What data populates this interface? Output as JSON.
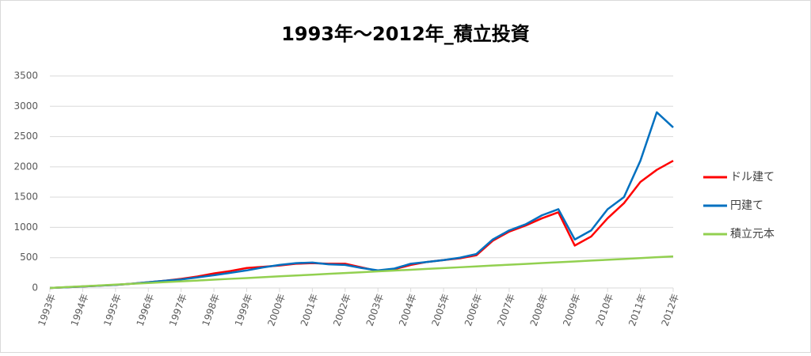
{
  "chart_data": {
    "type": "line",
    "title": "1993年～2012年_積立投資",
    "x": [
      1993,
      1993.5,
      1994,
      1994.5,
      1995,
      1995.5,
      1996,
      1996.5,
      1997,
      1997.5,
      1998,
      1998.5,
      1999,
      1999.5,
      2000,
      2000.5,
      2001,
      2001.5,
      2002,
      2002.5,
      2003,
      2003.5,
      2004,
      2004.5,
      2005,
      2005.5,
      2006,
      2006.5,
      2007,
      2007.5,
      2008,
      2008.5,
      2009,
      2009.5,
      2010,
      2010.5,
      2011,
      2011.5,
      2012
    ],
    "series": [
      {
        "name": "ドル建て",
        "color": "#ff0000",
        "values": [
          0,
          12,
          25,
          38,
          50,
          70,
          95,
          120,
          150,
          190,
          240,
          280,
          330,
          350,
          370,
          400,
          410,
          400,
          400,
          340,
          280,
          310,
          380,
          430,
          460,
          490,
          540,
          780,
          930,
          1030,
          1150,
          1250,
          700,
          850,
          1150,
          1400,
          1750,
          1950,
          2100
        ]
      },
      {
        "name": "円建て",
        "color": "#0070c0",
        "values": [
          0,
          12,
          25,
          38,
          50,
          70,
          95,
          120,
          140,
          175,
          210,
          250,
          290,
          340,
          380,
          410,
          420,
          390,
          380,
          330,
          290,
          320,
          400,
          430,
          460,
          500,
          560,
          800,
          950,
          1050,
          1200,
          1300,
          800,
          950,
          1300,
          1500,
          2100,
          2900,
          2650
        ]
      },
      {
        "name": "積立元本",
        "color": "#92d050",
        "values": [
          0,
          14,
          27,
          41,
          55,
          68,
          82,
          96,
          109,
          123,
          137,
          151,
          164,
          178,
          192,
          205,
          219,
          233,
          246,
          260,
          274,
          288,
          301,
          315,
          328,
          342,
          356,
          370,
          383,
          397,
          411,
          425,
          438,
          452,
          465,
          479,
          493,
          507,
          520
        ]
      }
    ],
    "xlim": [
      1993,
      2012
    ],
    "xticks": [
      {
        "value": 1993,
        "label": "1993年"
      },
      {
        "value": 1994,
        "label": "1994年"
      },
      {
        "value": 1995,
        "label": "1995年"
      },
      {
        "value": 1996,
        "label": "1996年"
      },
      {
        "value": 1997,
        "label": "1997年"
      },
      {
        "value": 1998,
        "label": "1998年"
      },
      {
        "value": 1999,
        "label": "1999年"
      },
      {
        "value": 2000,
        "label": "2000年"
      },
      {
        "value": 2001,
        "label": "2001年"
      },
      {
        "value": 2002,
        "label": "2002年"
      },
      {
        "value": 2003,
        "label": "2003年"
      },
      {
        "value": 2004,
        "label": "2004年"
      },
      {
        "value": 2005,
        "label": "2005年"
      },
      {
        "value": 2006,
        "label": "2006年"
      },
      {
        "value": 2007,
        "label": "2007年"
      },
      {
        "value": 2008,
        "label": "2008年"
      },
      {
        "value": 2009,
        "label": "2009年"
      },
      {
        "value": 2010,
        "label": "2010年"
      },
      {
        "value": 2011,
        "label": "2011年"
      },
      {
        "value": 2012,
        "label": "2012年"
      }
    ],
    "ylim": [
      0,
      3500
    ],
    "yticks": [
      0,
      500,
      1000,
      1500,
      2000,
      2500,
      3000,
      3500
    ],
    "grid": true,
    "legend": "right"
  }
}
